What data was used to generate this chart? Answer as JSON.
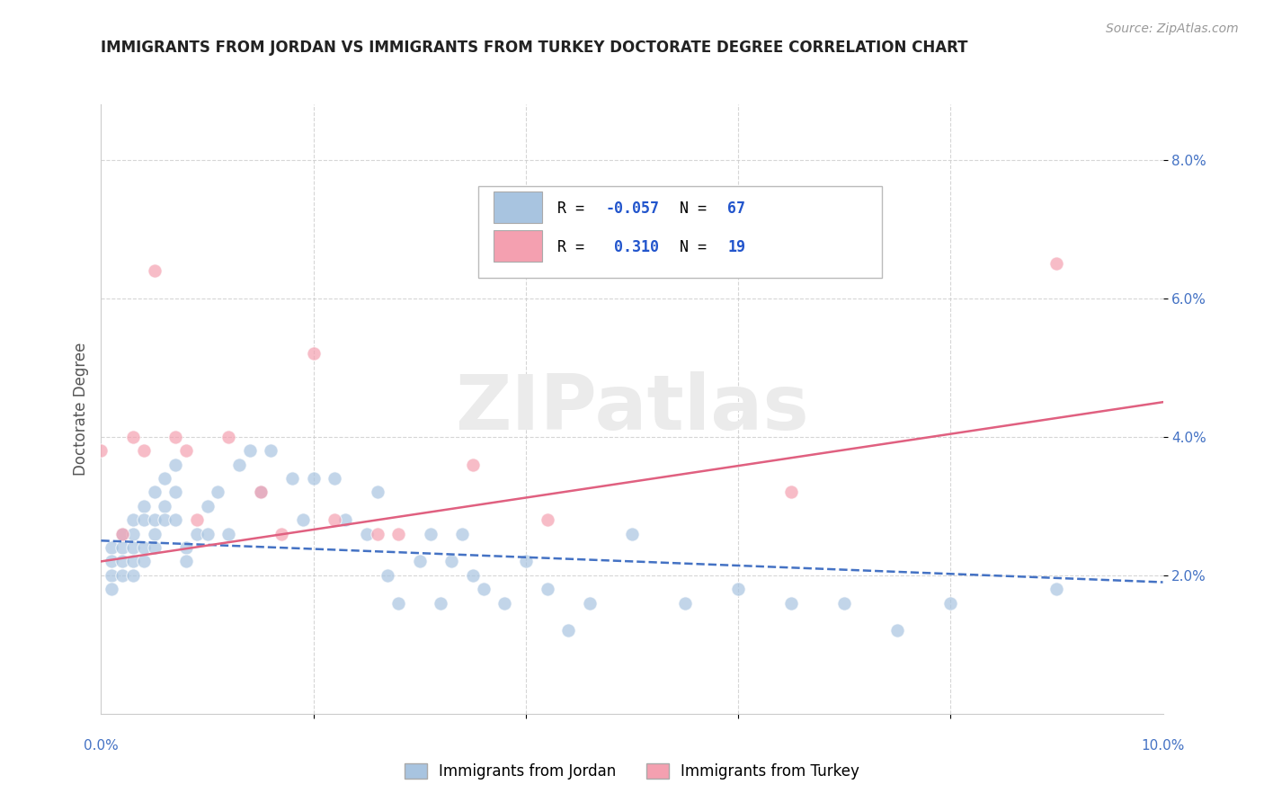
{
  "title": "IMMIGRANTS FROM JORDAN VS IMMIGRANTS FROM TURKEY DOCTORATE DEGREE CORRELATION CHART",
  "source": "Source: ZipAtlas.com",
  "ylabel": "Doctorate Degree",
  "xmin": 0.0,
  "xmax": 0.1,
  "ymin": 0.0,
  "ymax": 0.088,
  "yticks": [
    0.02,
    0.04,
    0.06,
    0.08
  ],
  "ytick_labels": [
    "2.0%",
    "4.0%",
    "6.0%",
    "8.0%"
  ],
  "jordan_R": -0.057,
  "jordan_N": 67,
  "turkey_R": 0.31,
  "turkey_N": 19,
  "jordan_color": "#a8c4e0",
  "turkey_color": "#f4a0b0",
  "jordan_line_color": "#4472c4",
  "turkey_line_color": "#e06080",
  "background_color": "#ffffff",
  "grid_color": "#cccccc",
  "legend_text_color": "#2255cc",
  "jordan_scatter_x": [
    0.001,
    0.001,
    0.001,
    0.001,
    0.002,
    0.002,
    0.002,
    0.002,
    0.003,
    0.003,
    0.003,
    0.003,
    0.003,
    0.004,
    0.004,
    0.004,
    0.004,
    0.005,
    0.005,
    0.005,
    0.005,
    0.006,
    0.006,
    0.006,
    0.007,
    0.007,
    0.007,
    0.008,
    0.008,
    0.009,
    0.01,
    0.01,
    0.011,
    0.012,
    0.013,
    0.014,
    0.015,
    0.016,
    0.018,
    0.019,
    0.02,
    0.022,
    0.023,
    0.025,
    0.026,
    0.027,
    0.028,
    0.03,
    0.031,
    0.032,
    0.033,
    0.034,
    0.035,
    0.036,
    0.038,
    0.04,
    0.042,
    0.044,
    0.046,
    0.05,
    0.055,
    0.06,
    0.065,
    0.07,
    0.075,
    0.08,
    0.09
  ],
  "jordan_scatter_y": [
    0.024,
    0.022,
    0.02,
    0.018,
    0.026,
    0.024,
    0.022,
    0.02,
    0.028,
    0.026,
    0.024,
    0.022,
    0.02,
    0.03,
    0.028,
    0.024,
    0.022,
    0.032,
    0.028,
    0.026,
    0.024,
    0.034,
    0.03,
    0.028,
    0.036,
    0.032,
    0.028,
    0.024,
    0.022,
    0.026,
    0.03,
    0.026,
    0.032,
    0.026,
    0.036,
    0.038,
    0.032,
    0.038,
    0.034,
    0.028,
    0.034,
    0.034,
    0.028,
    0.026,
    0.032,
    0.02,
    0.016,
    0.022,
    0.026,
    0.016,
    0.022,
    0.026,
    0.02,
    0.018,
    0.016,
    0.022,
    0.018,
    0.012,
    0.016,
    0.026,
    0.016,
    0.018,
    0.016,
    0.016,
    0.012,
    0.016,
    0.018
  ],
  "turkey_scatter_x": [
    0.0,
    0.002,
    0.003,
    0.004,
    0.005,
    0.007,
    0.008,
    0.009,
    0.012,
    0.015,
    0.017,
    0.02,
    0.022,
    0.026,
    0.028,
    0.035,
    0.042,
    0.065,
    0.09
  ],
  "turkey_scatter_y": [
    0.038,
    0.026,
    0.04,
    0.038,
    0.064,
    0.04,
    0.038,
    0.028,
    0.04,
    0.032,
    0.026,
    0.052,
    0.028,
    0.026,
    0.026,
    0.036,
    0.028,
    0.032,
    0.065
  ]
}
